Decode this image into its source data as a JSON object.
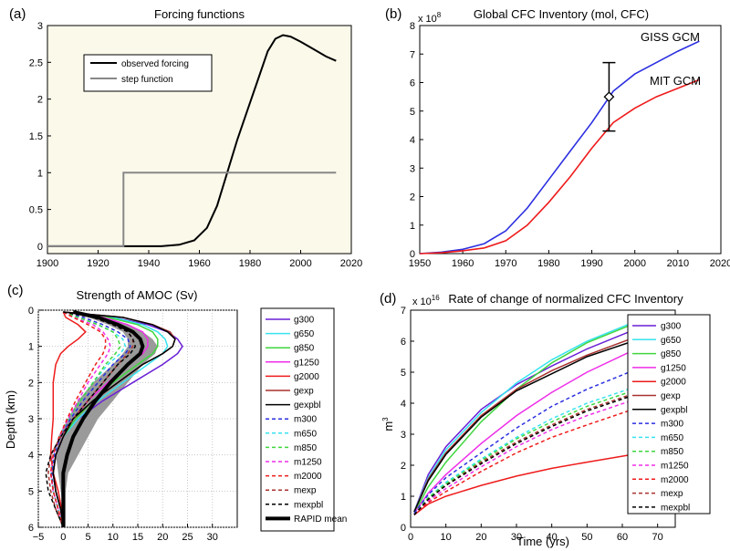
{
  "colors": {
    "purple": "#6a1fd6",
    "cyan": "#37e3ef",
    "green": "#3fd63f",
    "magenta": "#ee2ee8",
    "red": "#ee1b1b",
    "brown": "#a8322f",
    "black": "#000000",
    "blue": "#2b2fe0",
    "gray": "#888888",
    "band": "#9a9a9a"
  },
  "chart_data": [
    {
      "panel": "(a)",
      "type": "line",
      "title": "Forcing functions",
      "xlim": [
        1900,
        2020
      ],
      "ylim": [
        -0.1,
        3
      ],
      "xticks": [
        "1900",
        "1920",
        "1940",
        "1960",
        "1980",
        "2000",
        "2020"
      ],
      "yticks": [
        "0",
        "0.5",
        "1",
        "1.5",
        "2",
        "2.5",
        "3"
      ],
      "legend": [
        "observed forcing",
        "step function"
      ],
      "series": [
        {
          "name": "observed forcing",
          "color": "black",
          "x": [
            1900,
            1930,
            1945,
            1952,
            1958,
            1963,
            1967,
            1971,
            1975,
            1979,
            1983,
            1987,
            1990,
            1993,
            1996,
            2000,
            2005,
            2010,
            2014
          ],
          "y": [
            0,
            0,
            0,
            0.02,
            0.08,
            0.25,
            0.55,
            1.0,
            1.45,
            1.85,
            2.25,
            2.65,
            2.82,
            2.87,
            2.85,
            2.78,
            2.68,
            2.58,
            2.52
          ]
        },
        {
          "name": "step function",
          "color": "gray",
          "x": [
            1900,
            1930,
            1930,
            2014
          ],
          "y": [
            0,
            0,
            1,
            1
          ]
        }
      ]
    },
    {
      "panel": "(b)",
      "type": "line",
      "title": "Global CFC Inventory (mol, CFC)",
      "exponent": "x 10",
      "exponent_power": "8",
      "xlim": [
        1950,
        2020
      ],
      "ylim": [
        0,
        8
      ],
      "xticks": [
        "1950",
        "1960",
        "1970",
        "1980",
        "1990",
        "2000",
        "2010",
        "2020"
      ],
      "yticks": [
        "0",
        "1",
        "2",
        "3",
        "4",
        "5",
        "6",
        "7",
        "8"
      ],
      "annotations": [
        "GISS GCM",
        "MIT GCM"
      ],
      "observation": {
        "x": 1994,
        "y": 5.5,
        "low": 4.3,
        "high": 6.7
      },
      "series": [
        {
          "name": "GISS GCM",
          "color": "blue",
          "x": [
            1950,
            1955,
            1960,
            1965,
            1970,
            1975,
            1980,
            1985,
            1990,
            1995,
            2000,
            2005,
            2010,
            2015
          ],
          "y": [
            0,
            0.05,
            0.15,
            0.35,
            0.8,
            1.6,
            2.6,
            3.6,
            4.6,
            5.7,
            6.3,
            6.7,
            7.1,
            7.45
          ]
        },
        {
          "name": "MIT GCM",
          "color": "red",
          "x": [
            1950,
            1955,
            1960,
            1965,
            1970,
            1975,
            1980,
            1985,
            1990,
            1995,
            2000,
            2005,
            2010,
            2015
          ],
          "y": [
            0,
            0.03,
            0.1,
            0.2,
            0.45,
            1.0,
            1.8,
            2.7,
            3.7,
            4.6,
            5.1,
            5.5,
            5.8,
            6.1
          ]
        }
      ]
    },
    {
      "panel": "(c)",
      "type": "line",
      "title": "Strength of AMOC (Sv)",
      "ylabel": "Depth (km)",
      "xlim": [
        -5,
        35
      ],
      "ylim": [
        6,
        0
      ],
      "xticks": [
        "−5",
        "0",
        "5",
        "10",
        "15",
        "20",
        "25",
        "30"
      ],
      "yticks": [
        "0",
        "1",
        "2",
        "3",
        "4",
        "5",
        "6"
      ],
      "depth": [
        0.05,
        0.2,
        0.4,
        0.6,
        0.8,
        1.0,
        1.2,
        1.5,
        2.0,
        2.5,
        3.0,
        3.5,
        4.0,
        4.5,
        5.0,
        5.5,
        6.0
      ],
      "rapid_band": {
        "low": [
          1,
          5,
          9,
          12,
          13,
          13,
          12,
          10,
          6,
          3,
          1,
          -1,
          -1.5,
          -1,
          -0.5,
          0,
          0
        ],
        "high": [
          3,
          9,
          13,
          16,
          18,
          19,
          18.5,
          16,
          13,
          10,
          7,
          5,
          3,
          1,
          0.5,
          0.5,
          0.5
        ]
      },
      "series": [
        {
          "name": "g300",
          "color": "purple",
          "dash": false,
          "x": [
            0,
            10,
            17,
            21,
            23,
            24,
            23,
            20,
            14,
            8,
            3,
            0,
            -1.5,
            -2,
            -1.5,
            -0.5,
            0
          ]
        },
        {
          "name": "g650",
          "color": "cyan",
          "dash": false,
          "x": [
            0,
            10,
            16,
            19,
            20.5,
            21,
            20,
            17,
            12,
            7,
            3,
            0,
            -1.5,
            -2,
            -1.5,
            -0.5,
            0
          ]
        },
        {
          "name": "g850",
          "color": "green",
          "dash": false,
          "x": [
            0,
            9,
            15,
            18,
            19,
            19,
            18,
            15,
            10,
            6,
            2.5,
            0,
            -1.5,
            -2,
            -1.5,
            -0.5,
            0
          ]
        },
        {
          "name": "g1250",
          "color": "magenta",
          "dash": false,
          "x": [
            0,
            8,
            13,
            16,
            17,
            17,
            16,
            13,
            9,
            5,
            2,
            0,
            -1.5,
            -2,
            -1.5,
            -0.5,
            0
          ]
        },
        {
          "name": "g2000",
          "color": "red",
          "dash": false,
          "x": [
            0,
            0.5,
            3,
            4.5,
            3,
            1,
            -0.5,
            -1.5,
            -2,
            -2,
            -2,
            -2.3,
            -2.5,
            -2,
            -1,
            -0.3,
            0
          ]
        },
        {
          "name": "gexp",
          "color": "brown",
          "dash": false,
          "x": [
            0,
            12,
            18,
            21.5,
            22.5,
            22,
            20,
            16,
            11,
            6,
            2,
            0,
            -1.5,
            -2,
            -1.5,
            -0.5,
            0
          ]
        },
        {
          "name": "gexpbl",
          "color": "black",
          "dash": false,
          "x": [
            0,
            12,
            18,
            21,
            22.5,
            22,
            20,
            16,
            11,
            6,
            2,
            0,
            -1.5,
            -2,
            -1.5,
            -0.5,
            0
          ]
        },
        {
          "name": "m300",
          "color": "blue",
          "dash": true,
          "x": [
            0,
            4,
            8,
            11,
            13,
            13.5,
            12.5,
            10,
            7,
            4,
            1.5,
            -0.5,
            -1.8,
            -2.3,
            -2,
            -1,
            0
          ]
        },
        {
          "name": "m650",
          "color": "cyan",
          "dash": true,
          "x": [
            0,
            3,
            7,
            10,
            12,
            12.5,
            11.5,
            9,
            6,
            3.5,
            1,
            -0.8,
            -2,
            -2.5,
            -2,
            -1,
            0
          ]
        },
        {
          "name": "m850",
          "color": "green",
          "dash": true,
          "x": [
            0,
            3,
            7,
            10,
            11,
            11.5,
            10.5,
            8.5,
            6,
            3.5,
            1,
            -0.8,
            -2,
            -2.5,
            -2,
            -1,
            0
          ]
        },
        {
          "name": "m1250",
          "color": "magenta",
          "dash": true,
          "x": [
            0,
            2,
            6,
            8,
            9,
            9.5,
            9,
            7.5,
            5,
            3,
            1,
            -0.8,
            -2,
            -2.5,
            -2,
            -1,
            0
          ]
        },
        {
          "name": "m2000",
          "color": "red",
          "dash": true,
          "x": [
            0,
            2,
            5,
            7.5,
            8.5,
            8.5,
            8,
            6.5,
            4.5,
            2.5,
            0.8,
            -0.8,
            -2,
            -2.5,
            -2,
            -1,
            0
          ]
        },
        {
          "name": "mexp",
          "color": "brown",
          "dash": true,
          "x": [
            0,
            6,
            10,
            13,
            14,
            14,
            13,
            11,
            8,
            5,
            2,
            -0.5,
            -2.5,
            -3,
            -2.5,
            -1.5,
            0
          ]
        },
        {
          "name": "mexpbl",
          "color": "black",
          "dash": true,
          "x": [
            0,
            6,
            10,
            13,
            14,
            14.5,
            13.5,
            11,
            8,
            5,
            2,
            -0.5,
            -2.5,
            -3.5,
            -3,
            -1.5,
            0
          ]
        },
        {
          "name": "RAPID mean",
          "color": "black",
          "width": 4,
          "dash": false,
          "x": [
            2,
            7,
            11,
            14,
            15.5,
            16,
            15.5,
            13,
            9.5,
            6.5,
            4,
            2,
            0.8,
            0,
            0,
            0,
            0
          ]
        }
      ]
    },
    {
      "panel": "(d)",
      "type": "line",
      "title": "Rate of change of normalized CFC Inventory",
      "exponent": "x 10",
      "exponent_power": "16",
      "xlabel": "Time (yrs)",
      "ylabel": "m",
      "ylabel_power": "3",
      "xlim": [
        0,
        75
      ],
      "ylim": [
        0,
        7
      ],
      "xticks": [
        "0",
        "10",
        "20",
        "30",
        "40",
        "50",
        "60",
        "70"
      ],
      "yticks": [
        "0",
        "1",
        "2",
        "3",
        "4",
        "5",
        "6",
        "7"
      ],
      "x": [
        1,
        5,
        10,
        20,
        30,
        40,
        50,
        63
      ],
      "series": [
        {
          "name": "g300",
          "color": "purple",
          "dash": false,
          "y": [
            0.5,
            1.7,
            2.6,
            3.8,
            4.6,
            5.2,
            5.75,
            6.35
          ]
        },
        {
          "name": "g650",
          "color": "cyan",
          "dash": false,
          "y": [
            0.5,
            1.6,
            2.5,
            3.7,
            4.65,
            5.4,
            6.0,
            6.6
          ]
        },
        {
          "name": "g850",
          "color": "green",
          "dash": false,
          "y": [
            0.45,
            1.3,
            2.1,
            3.4,
            4.45,
            5.3,
            5.95,
            6.55
          ]
        },
        {
          "name": "g1250",
          "color": "magenta",
          "dash": false,
          "y": [
            0.45,
            1.1,
            1.7,
            2.7,
            3.6,
            4.35,
            5.0,
            5.7
          ]
        },
        {
          "name": "g2000",
          "color": "red",
          "dash": false,
          "y": [
            0.4,
            0.75,
            1.0,
            1.35,
            1.65,
            1.9,
            2.1,
            2.35
          ]
        },
        {
          "name": "gexp",
          "color": "brown",
          "dash": false,
          "y": [
            0.5,
            1.55,
            2.4,
            3.6,
            4.45,
            5.05,
            5.55,
            6.1
          ]
        },
        {
          "name": "gexpbl",
          "color": "black",
          "dash": false,
          "y": [
            0.5,
            1.5,
            2.35,
            3.55,
            4.4,
            4.95,
            5.5,
            6.0
          ]
        },
        {
          "name": "m300",
          "color": "blue",
          "dash": true,
          "y": [
            0.45,
            1.05,
            1.6,
            2.4,
            3.2,
            3.9,
            4.45,
            5.05
          ]
        },
        {
          "name": "m650",
          "color": "cyan",
          "dash": true,
          "y": [
            0.4,
            0.95,
            1.45,
            2.2,
            2.9,
            3.5,
            4.0,
            4.5
          ]
        },
        {
          "name": "m850",
          "color": "green",
          "dash": true,
          "y": [
            0.4,
            0.95,
            1.4,
            2.15,
            2.85,
            3.4,
            3.9,
            4.4
          ]
        },
        {
          "name": "m1250",
          "color": "magenta",
          "dash": true,
          "y": [
            0.4,
            0.85,
            1.25,
            1.95,
            2.6,
            3.15,
            3.6,
            4.1
          ]
        },
        {
          "name": "m2000",
          "color": "red",
          "dash": true,
          "y": [
            0.4,
            0.8,
            1.15,
            1.8,
            2.4,
            2.9,
            3.3,
            3.8
          ]
        },
        {
          "name": "mexp",
          "color": "brown",
          "dash": true,
          "y": [
            0.4,
            0.9,
            1.35,
            2.1,
            2.75,
            3.3,
            3.8,
            4.3
          ]
        },
        {
          "name": "mexpbl",
          "color": "black",
          "dash": true,
          "y": [
            0.4,
            0.9,
            1.35,
            2.05,
            2.7,
            3.25,
            3.75,
            4.25
          ]
        }
      ]
    }
  ]
}
